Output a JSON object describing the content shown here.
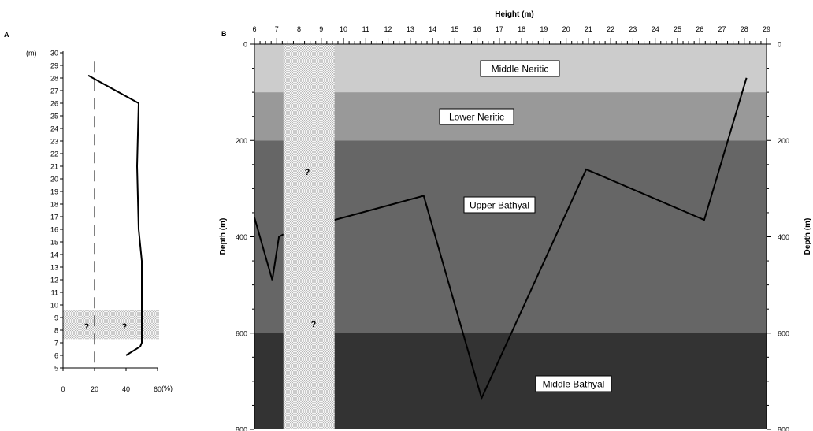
{
  "panels": {
    "a_label": "A",
    "b_label": "B"
  },
  "chart_data": [
    {
      "type": "line",
      "panel": "A",
      "y_unit_label": "(m)",
      "x_unit_label": "(%)",
      "xlim": [
        0,
        60
      ],
      "ylim": [
        5,
        30
      ],
      "x_ticks": [
        0,
        20,
        40,
        60
      ],
      "y_ticks": [
        5,
        6,
        7,
        8,
        9,
        10,
        11,
        12,
        13,
        14,
        15,
        16,
        17,
        18,
        19,
        20,
        21,
        22,
        23,
        24,
        25,
        26,
        27,
        28,
        29,
        30
      ],
      "reference_line": {
        "x": 20,
        "style": "dashed"
      },
      "gap_band": {
        "y_from": 7.3,
        "y_to": 9.6,
        "marks": [
          "?",
          "?"
        ]
      },
      "series": [
        {
          "points": [
            [
              40,
              6
            ],
            [
              49,
              6.7
            ],
            [
              50,
              7
            ],
            [
              50,
              9.6
            ]
          ]
        },
        {
          "points": [
            [
              50,
              9.6
            ],
            [
              50,
              13.5
            ],
            [
              48,
              16
            ],
            [
              47,
              21
            ],
            [
              48,
              26
            ],
            [
              16,
              28.2
            ]
          ]
        }
      ]
    },
    {
      "type": "line",
      "panel": "B",
      "xlabel": "Height (m)",
      "ylabel": "Depth (m)",
      "ylabel_right": "Depth (m)",
      "xlim": [
        6,
        29
      ],
      "ylim": [
        800,
        0
      ],
      "x_ticks": [
        6,
        7,
        8,
        9,
        10,
        11,
        12,
        13,
        14,
        15,
        16,
        17,
        18,
        19,
        20,
        21,
        22,
        23,
        24,
        25,
        26,
        27,
        28,
        29
      ],
      "y_ticks": [
        0,
        200,
        400,
        600,
        800
      ],
      "zones": [
        {
          "name": "Middle Neritic",
          "from": 0,
          "to": 100,
          "color": "#cccccc"
        },
        {
          "name": "Lower Neritic",
          "from": 100,
          "to": 200,
          "color": "#999999"
        },
        {
          "name": "Upper Bathyal",
          "from": 200,
          "to": 600,
          "color": "#666666"
        },
        {
          "name": "Middle Bathyal",
          "from": 600,
          "to": 800,
          "color": "#333333"
        }
      ],
      "gap_band": {
        "x_from": 7.3,
        "x_to": 9.6,
        "marks": [
          "?",
          "?"
        ]
      },
      "series": [
        {
          "points": [
            [
              6,
              360
            ],
            [
              6.8,
              490
            ],
            [
              7.1,
              400
            ],
            [
              7.3,
              395
            ]
          ]
        },
        {
          "points": [
            [
              9.6,
              365
            ],
            [
              13.6,
              315
            ],
            [
              16.2,
              735
            ],
            [
              20.9,
              260
            ],
            [
              26.2,
              365
            ],
            [
              28.1,
              70
            ]
          ]
        }
      ]
    }
  ]
}
